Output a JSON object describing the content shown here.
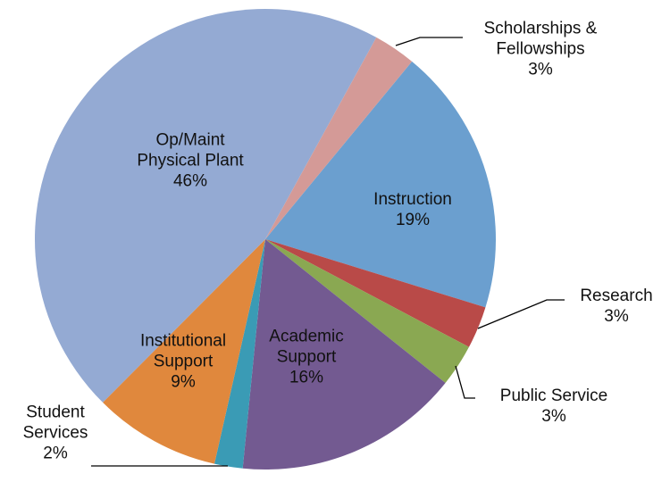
{
  "chart_data": {
    "type": "pie",
    "categories": [
      "Instruction",
      "Research",
      "Public Service",
      "Academic Support",
      "Student Services",
      "Institutional Support",
      "Op/Maint Physical Plant",
      "Scholarships & Fellowships"
    ],
    "values": [
      19,
      3,
      3,
      16,
      2,
      9,
      46,
      3
    ],
    "value_labels": [
      "19%",
      "3%",
      "3%",
      "16%",
      "2%",
      "9%",
      "46%",
      "3%"
    ],
    "colors": [
      "#6b9fcf",
      "#b94a48",
      "#8aa852",
      "#735a91",
      "#3a9bb5",
      "#e0883d",
      "#94aad3",
      "#d49a97"
    ]
  }
}
